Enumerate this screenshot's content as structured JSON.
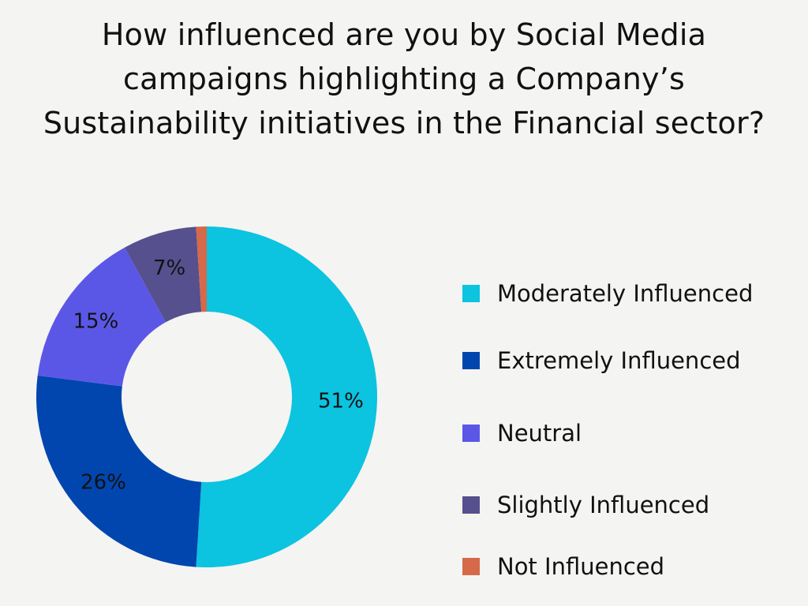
{
  "chart_data": {
    "type": "pie",
    "variant": "donut",
    "title": "How influenced are you by Social Media campaigns highlighting a Company’s Sustainability initiatives in the Financial sector?",
    "categories": [
      "Moderately Influenced",
      "Extremely Influenced",
      "Neutral",
      "Slightly Influenced",
      "Not Influenced"
    ],
    "values": [
      51,
      26,
      15,
      7,
      1
    ],
    "data_labels": [
      "51%",
      "26%",
      "15%",
      "7%",
      ""
    ],
    "colors": [
      "#0cc3e0",
      "#0046ae",
      "#5b57e6",
      "#56508e",
      "#d5694a"
    ],
    "legend_position": "right",
    "unit": "%"
  }
}
